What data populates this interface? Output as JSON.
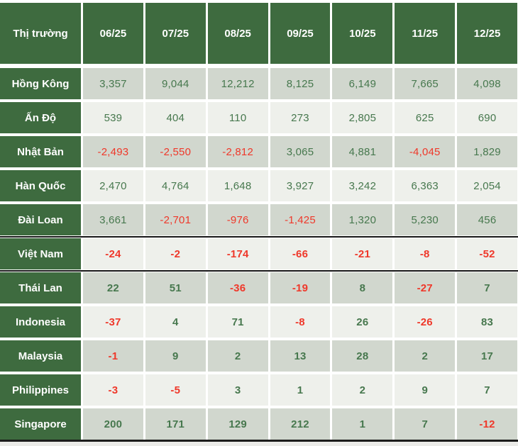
{
  "chart_data": {
    "type": "table",
    "header": {
      "market_col": "Thị trường",
      "months": [
        "06/25",
        "07/25",
        "08/25",
        "09/25",
        "10/25",
        "11/25",
        "12/25"
      ]
    },
    "rows": [
      {
        "label": "Hồng Kông",
        "values": [
          "3,357",
          "9,044",
          "12,212",
          "8,125",
          "6,149",
          "7,665",
          "4,098"
        ]
      },
      {
        "label": "Ấn Độ",
        "values": [
          "539",
          "404",
          "110",
          "273",
          "2,805",
          "625",
          "690"
        ]
      },
      {
        "label": "Nhật Bản",
        "values": [
          "-2,493",
          "-2,550",
          "-2,812",
          "3,065",
          "4,881",
          "-4,045",
          "1,829"
        ]
      },
      {
        "label": "Hàn Quốc",
        "values": [
          "2,470",
          "4,764",
          "1,648",
          "3,927",
          "3,242",
          "6,363",
          "2,054"
        ]
      },
      {
        "label": "Đài Loan",
        "values": [
          "3,661",
          "-2,701",
          "-976",
          "-1,425",
          "1,320",
          "5,230",
          "456"
        ]
      },
      {
        "label": "Việt Nam",
        "values": [
          "-24",
          "-2",
          "-174",
          "-66",
          "-21",
          "-8",
          "-52"
        ]
      },
      {
        "label": "Thái Lan",
        "values": [
          "22",
          "51",
          "-36",
          "-19",
          "8",
          "-27",
          "7"
        ]
      },
      {
        "label": "Indonesia",
        "values": [
          "-37",
          "4",
          "71",
          "-8",
          "26",
          "-26",
          "83"
        ]
      },
      {
        "label": "Malaysia",
        "values": [
          "-1",
          "9",
          "2",
          "13",
          "28",
          "2",
          "17"
        ]
      },
      {
        "label": "Philippines",
        "values": [
          "-3",
          "-5",
          "3",
          "1",
          "2",
          "9",
          "7"
        ]
      },
      {
        "label": "Singapore",
        "values": [
          "200",
          "171",
          "129",
          "212",
          "1",
          "7",
          "-12"
        ]
      }
    ],
    "layout_hints": {
      "value_color_rule": "negative values red, positive values green",
      "highlighted_row": "Việt Nam (black rule above and below)"
    }
  },
  "colors": {
    "header_green": "#3e6b3f",
    "row_dark": "#d1d7ce",
    "row_light": "#eef0eb",
    "positive_text": "#47784e",
    "negative_text": "#ef382a",
    "separator_black": "#161616"
  }
}
